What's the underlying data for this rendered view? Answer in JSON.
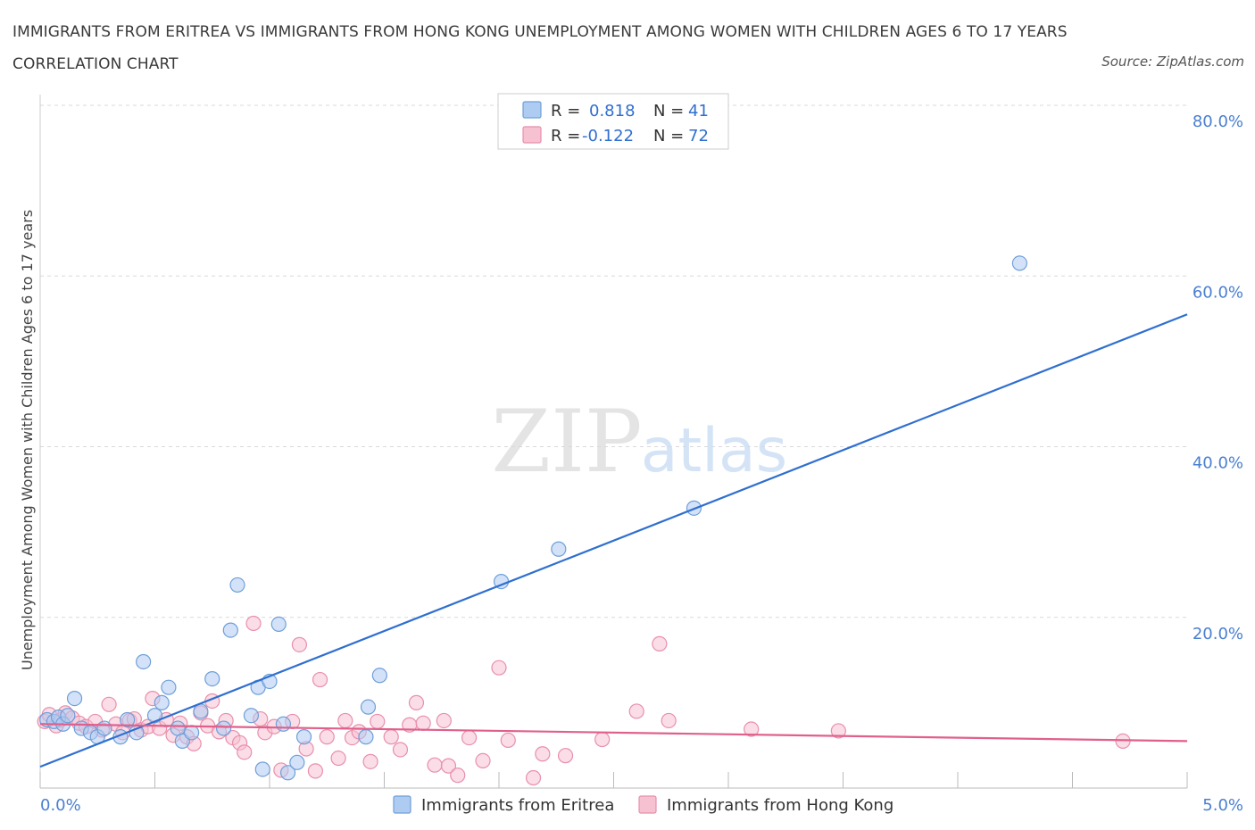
{
  "title": "IMMIGRANTS FROM ERITREA VS IMMIGRANTS FROM HONG KONG UNEMPLOYMENT AMONG WOMEN WITH CHILDREN AGES 6 TO 17 YEARS CORRELATION CHART",
  "source": "Source: ZipAtlas.com",
  "watermark": {
    "zip": "ZIP",
    "atlas": "atlas"
  },
  "colors": {
    "eritrea_fill": "#aecbf2",
    "eritrea_stroke": "#6f9fd8",
    "eritrea_line": "#2f6fcf",
    "hongkong_fill": "#f6c1d1",
    "hongkong_stroke": "#e88fac",
    "hongkong_line": "#e0608c",
    "axis_label": "#4a7fd0",
    "grid": "#d9d9d9"
  },
  "stats_legend": [
    {
      "series": "Immigrants from Eritrea",
      "r_label": "R =",
      "r_value": "0.818",
      "n_label": "N =",
      "n_value": "41"
    },
    {
      "series": "Immigrants from Hong Kong",
      "r_label": "R =",
      "r_value": "-0.122",
      "n_label": "N =",
      "n_value": "72"
    }
  ],
  "chart_data": {
    "type": "scatter",
    "title": "IMMIGRANTS FROM ERITREA VS IMMIGRANTS FROM HONG KONG UNEMPLOYMENT AMONG WOMEN WITH CHILDREN AGES 6 TO 17 YEARS CORRELATION CHART",
    "xlabel": "",
    "ylabel": "Unemployment Among Women with Children Ages 6 to 17 years",
    "xlim": [
      0,
      5
    ],
    "ylim": [
      0,
      80
    ],
    "x_tick_labels": [
      {
        "value": 0,
        "label": "0.0%"
      },
      {
        "value": 5,
        "label": "5.0%"
      }
    ],
    "y_tick_labels": [
      {
        "value": 20,
        "label": "20.0%"
      },
      {
        "value": 40,
        "label": "40.0%"
      },
      {
        "value": 60,
        "label": "60.0%"
      },
      {
        "value": 80,
        "label": "80.0%"
      }
    ],
    "legend_position": "bottom",
    "grid": true,
    "series": [
      {
        "name": "Immigrants from Eritrea",
        "trend": {
          "x0": 0,
          "y0": 2.5,
          "x1": 5,
          "y1": 55.5
        },
        "points": [
          [
            0.03,
            8.0
          ],
          [
            0.06,
            7.8
          ],
          [
            0.08,
            8.3
          ],
          [
            0.1,
            7.5
          ],
          [
            0.12,
            8.5
          ],
          [
            0.15,
            10.5
          ],
          [
            0.18,
            7.0
          ],
          [
            0.22,
            6.5
          ],
          [
            0.25,
            6.0
          ],
          [
            0.28,
            7.0
          ],
          [
            0.35,
            6.0
          ],
          [
            0.38,
            8.0
          ],
          [
            0.42,
            6.5
          ],
          [
            0.45,
            14.8
          ],
          [
            0.5,
            8.5
          ],
          [
            0.53,
            10.0
          ],
          [
            0.56,
            11.8
          ],
          [
            0.6,
            7.0
          ],
          [
            0.62,
            5.5
          ],
          [
            0.66,
            6.5
          ],
          [
            0.7,
            9.0
          ],
          [
            0.75,
            12.8
          ],
          [
            0.8,
            7.0
          ],
          [
            0.83,
            18.5
          ],
          [
            0.86,
            23.8
          ],
          [
            0.92,
            8.5
          ],
          [
            0.95,
            11.8
          ],
          [
            0.97,
            2.2
          ],
          [
            1.0,
            12.5
          ],
          [
            1.04,
            19.2
          ],
          [
            1.06,
            7.5
          ],
          [
            1.08,
            1.8
          ],
          [
            1.12,
            3.0
          ],
          [
            1.15,
            6.0
          ],
          [
            1.42,
            6.0
          ],
          [
            1.43,
            9.5
          ],
          [
            1.48,
            13.2
          ],
          [
            2.01,
            24.2
          ],
          [
            2.26,
            28.0
          ],
          [
            2.85,
            32.8
          ],
          [
            4.27,
            61.5
          ]
        ]
      },
      {
        "name": "Immigrants from Hong Kong",
        "trend": {
          "x0": 0,
          "y0": 7.5,
          "x1": 5,
          "y1": 5.5
        },
        "points": [
          [
            0.02,
            7.8
          ],
          [
            0.04,
            8.6
          ],
          [
            0.07,
            7.3
          ],
          [
            0.09,
            8.0
          ],
          [
            0.11,
            8.8
          ],
          [
            0.14,
            8.2
          ],
          [
            0.17,
            7.6
          ],
          [
            0.2,
            7.2
          ],
          [
            0.24,
            7.8
          ],
          [
            0.27,
            6.8
          ],
          [
            0.3,
            9.8
          ],
          [
            0.33,
            7.5
          ],
          [
            0.36,
            6.5
          ],
          [
            0.39,
            7.9
          ],
          [
            0.41,
            8.1
          ],
          [
            0.44,
            6.8
          ],
          [
            0.47,
            7.2
          ],
          [
            0.49,
            10.5
          ],
          [
            0.52,
            7.0
          ],
          [
            0.55,
            8.0
          ],
          [
            0.58,
            6.2
          ],
          [
            0.61,
            7.6
          ],
          [
            0.64,
            6.0
          ],
          [
            0.67,
            5.2
          ],
          [
            0.7,
            8.8
          ],
          [
            0.73,
            7.3
          ],
          [
            0.75,
            10.2
          ],
          [
            0.78,
            6.6
          ],
          [
            0.81,
            7.9
          ],
          [
            0.84,
            5.9
          ],
          [
            0.87,
            5.3
          ],
          [
            0.89,
            4.2
          ],
          [
            0.93,
            19.3
          ],
          [
            0.96,
            8.1
          ],
          [
            0.98,
            6.5
          ],
          [
            1.02,
            7.2
          ],
          [
            1.05,
            2.1
          ],
          [
            1.1,
            7.8
          ],
          [
            1.13,
            16.8
          ],
          [
            1.16,
            4.6
          ],
          [
            1.2,
            2.0
          ],
          [
            1.22,
            12.7
          ],
          [
            1.25,
            6.0
          ],
          [
            1.3,
            3.5
          ],
          [
            1.33,
            7.9
          ],
          [
            1.36,
            5.9
          ],
          [
            1.39,
            6.6
          ],
          [
            1.44,
            3.1
          ],
          [
            1.47,
            7.8
          ],
          [
            1.53,
            6.0
          ],
          [
            1.57,
            4.5
          ],
          [
            1.61,
            7.4
          ],
          [
            1.64,
            10.0
          ],
          [
            1.67,
            7.6
          ],
          [
            1.72,
            2.7
          ],
          [
            1.76,
            7.9
          ],
          [
            1.78,
            2.6
          ],
          [
            1.82,
            1.5
          ],
          [
            1.87,
            5.9
          ],
          [
            1.93,
            3.2
          ],
          [
            2.0,
            14.1
          ],
          [
            2.04,
            5.6
          ],
          [
            2.15,
            1.2
          ],
          [
            2.19,
            4.0
          ],
          [
            2.29,
            3.8
          ],
          [
            2.45,
            5.7
          ],
          [
            2.6,
            9.0
          ],
          [
            2.7,
            16.9
          ],
          [
            2.74,
            7.9
          ],
          [
            3.1,
            6.9
          ],
          [
            3.48,
            6.7
          ],
          [
            4.72,
            5.5
          ]
        ]
      }
    ]
  }
}
